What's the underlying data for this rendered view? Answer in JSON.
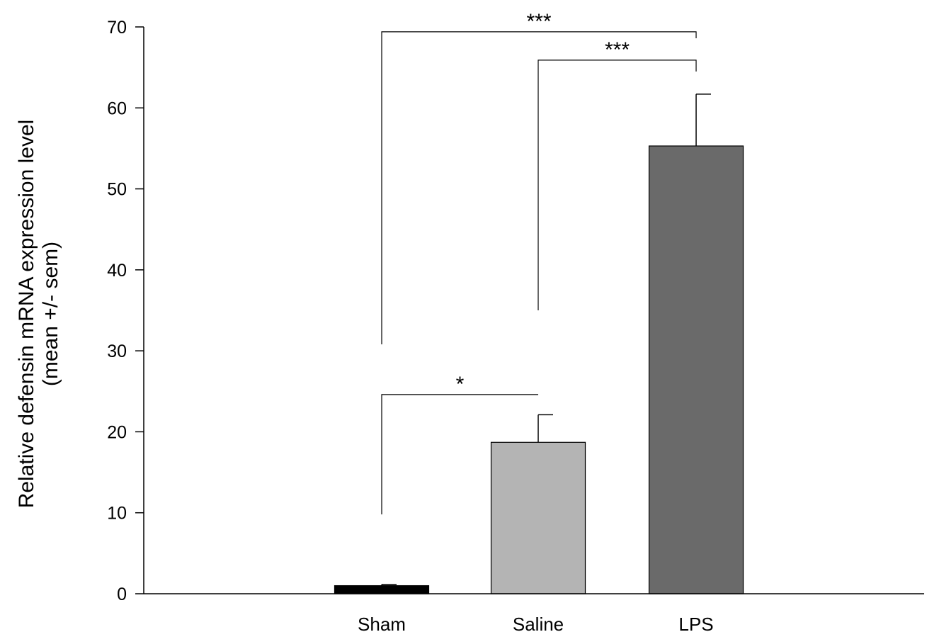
{
  "chart_data": {
    "type": "bar",
    "categories": [
      "Sham",
      "Saline",
      "LPS"
    ],
    "values": [
      1,
      18.7,
      55.3
    ],
    "errors": [
      0.15,
      3.4,
      6.4
    ],
    "bar_colors": [
      "#000000",
      "#b4b4b4",
      "#6a6a6a"
    ],
    "ylabel": "Relative defensin mRNA expression level",
    "ylabel2": "(mean +/- sem)",
    "ylim": [
      0,
      70
    ],
    "yticks": [
      0,
      10,
      20,
      30,
      40,
      50,
      60,
      70
    ],
    "grid": false,
    "significance": [
      {
        "from": "Sham",
        "to": "Saline",
        "label": "*",
        "y": 24.6,
        "left_end": 9.8,
        "right_end": 24.6
      },
      {
        "from": "Saline",
        "to": "LPS",
        "label": "***",
        "y": 65.9,
        "left_end": 35,
        "right_end": 64.5
      },
      {
        "from": "Sham",
        "to": "LPS",
        "label": "***",
        "y": 69.4,
        "left_end": 30.8,
        "right_end": 68.6
      }
    ]
  }
}
